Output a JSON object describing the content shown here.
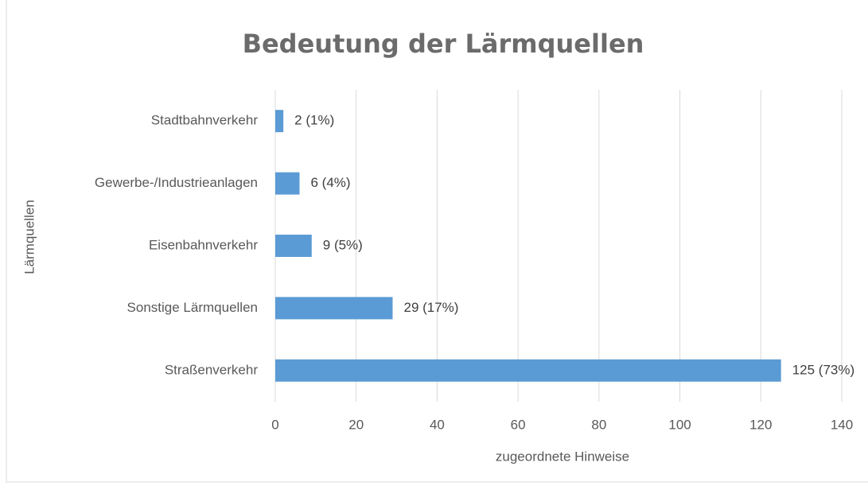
{
  "chart_data": {
    "type": "bar",
    "orientation": "horizontal",
    "title": "Bedeutung der Lärmquellen",
    "xlabel": "zugeordnete Hinweise",
    "ylabel": "Lärmquellen",
    "categories": [
      "Stadtbahnverkehr",
      "Gewerbe-/Industrieanlagen",
      "Eisenbahnverkehr",
      "Sonstige Lärmquellen",
      "Straßenverkehr"
    ],
    "values": [
      2,
      6,
      9,
      29,
      125
    ],
    "value_labels": [
      "2 (1%)",
      "6 (4%)",
      "9 (5%)",
      "29 (17%)",
      "125 (73%)"
    ],
    "color": "#5b9bd5",
    "xlim": [
      0,
      140
    ],
    "xticks": [
      0,
      20,
      40,
      60,
      80,
      100,
      120,
      140
    ],
    "grid": true
  }
}
